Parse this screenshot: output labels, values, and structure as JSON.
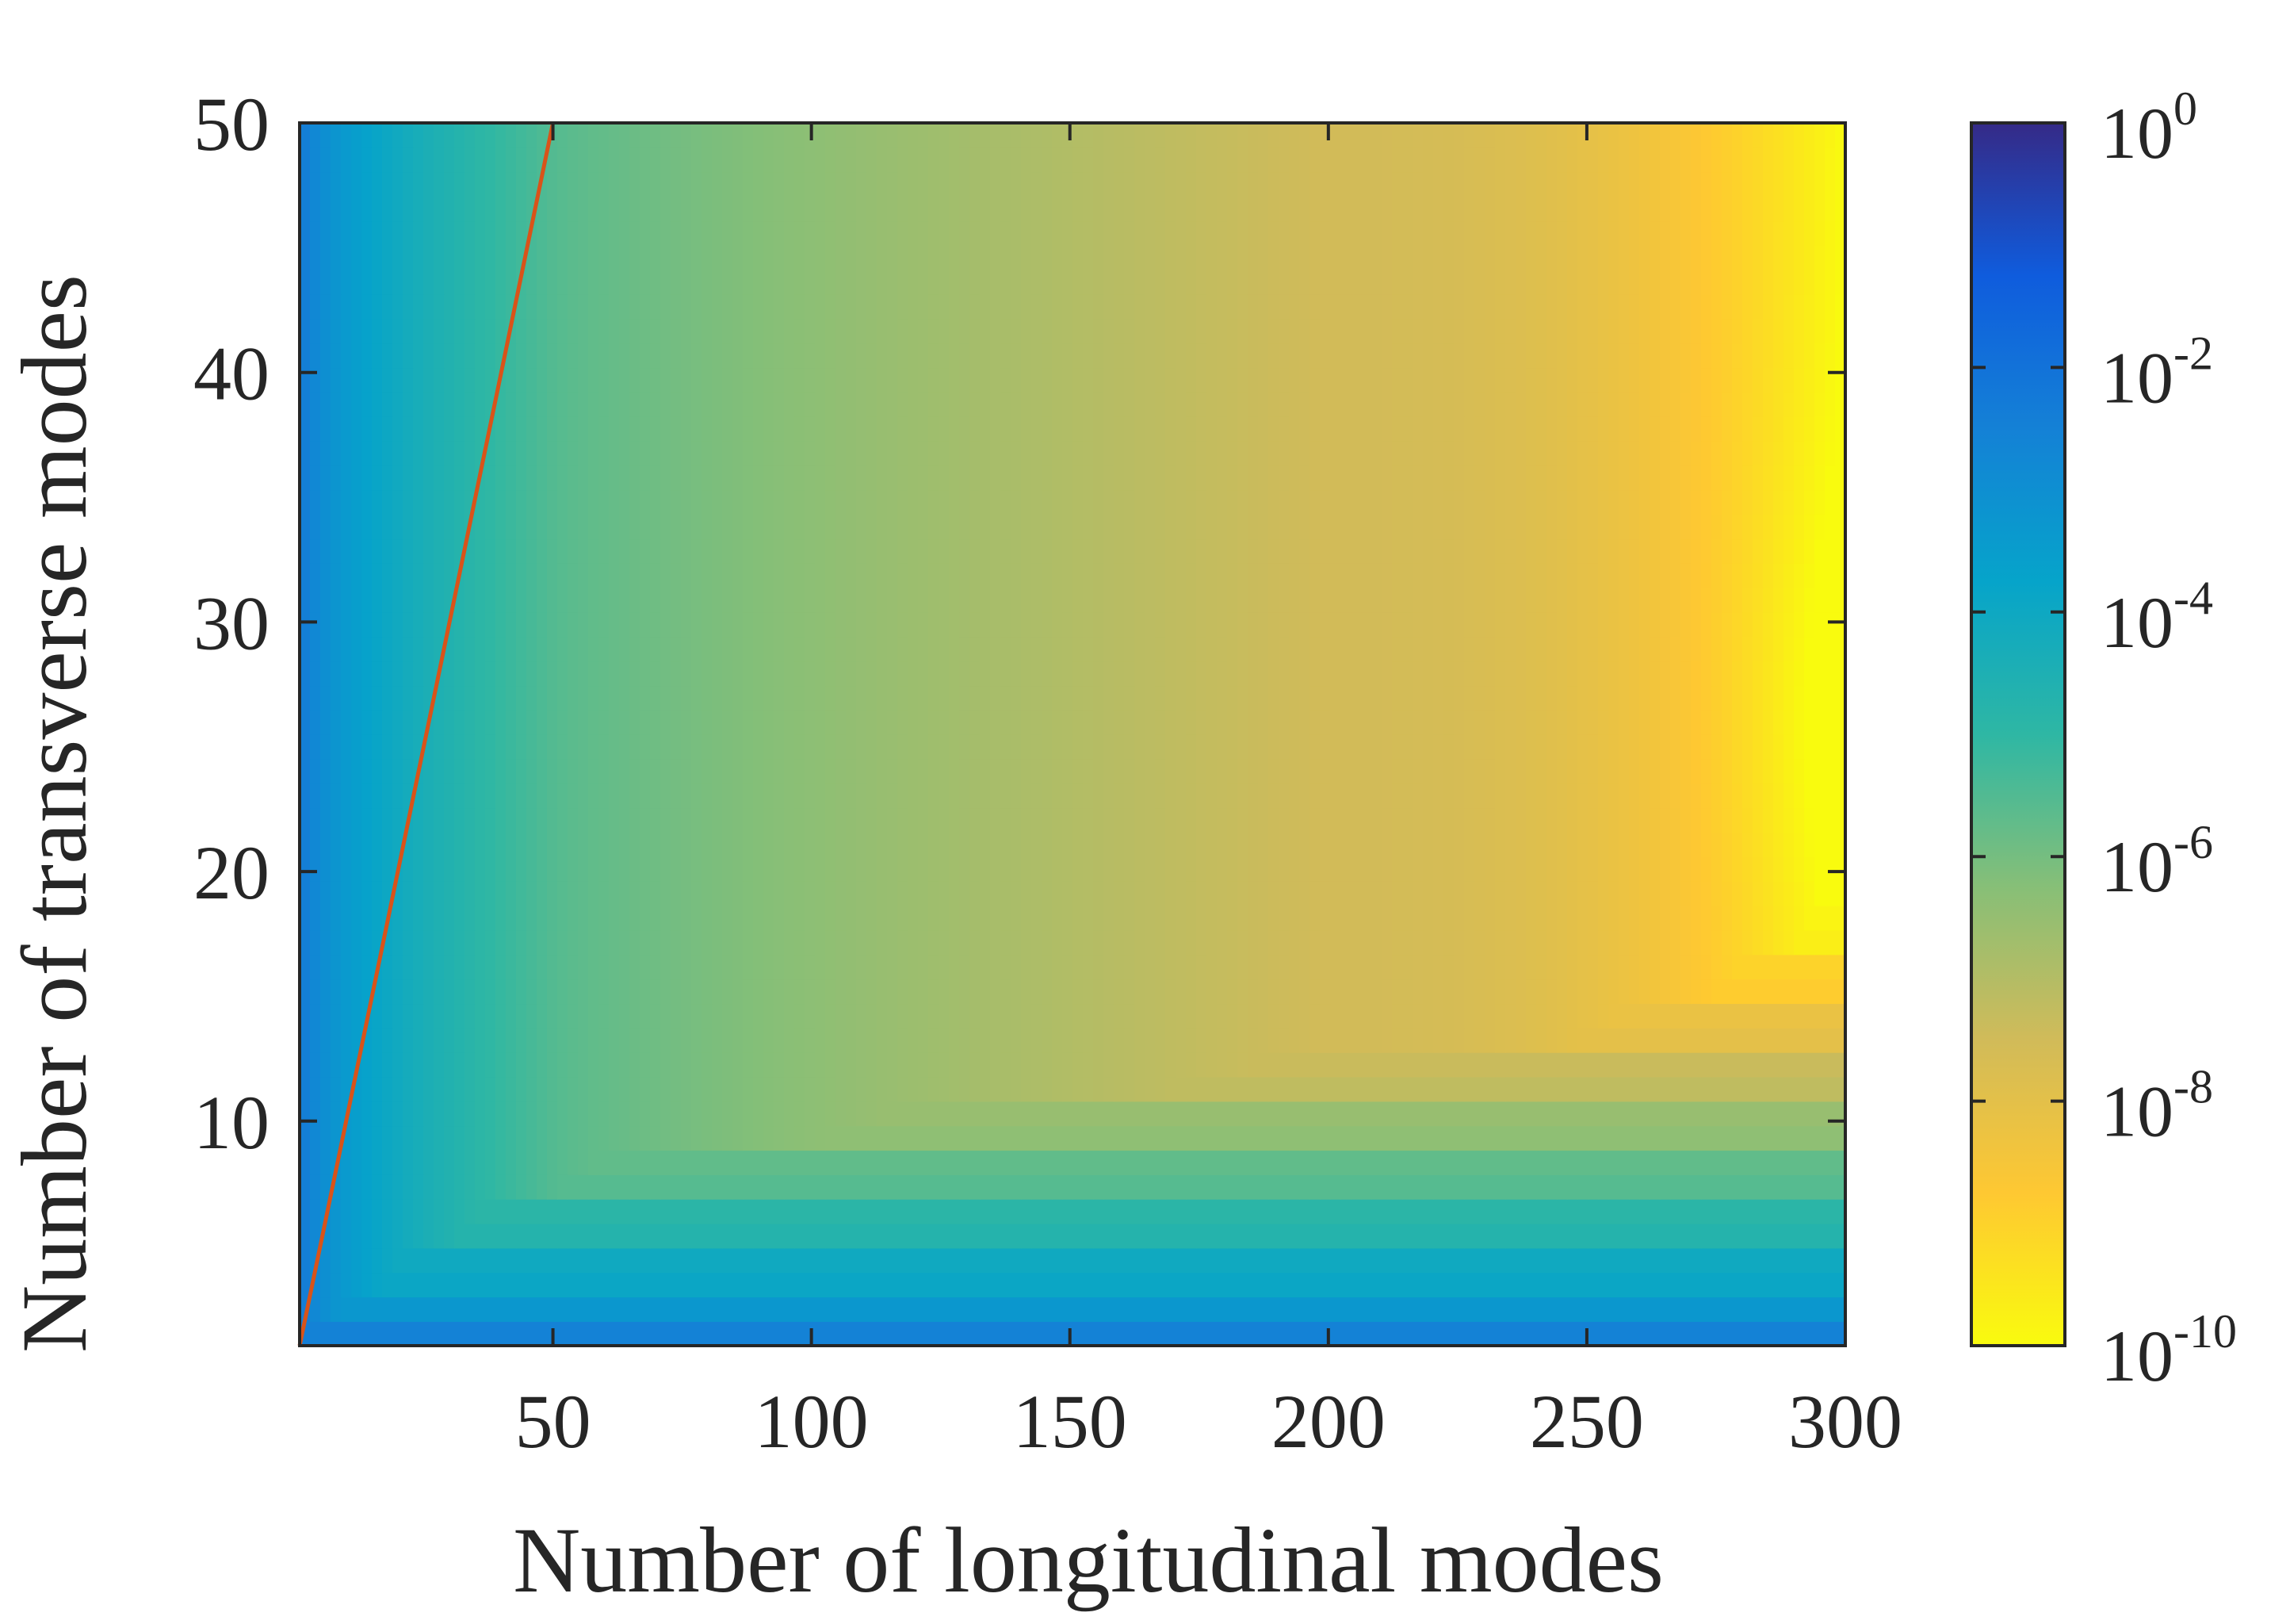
{
  "chart_data": {
    "type": "heatmap",
    "title": "",
    "xlabel": "Number of longitudinal modes",
    "ylabel": "Number of transverse modes",
    "xlim": [
      1,
      300
    ],
    "ylim": [
      1,
      50
    ],
    "x_ticks": [
      50,
      100,
      150,
      200,
      250,
      300
    ],
    "y_ticks": [
      10,
      20,
      30,
      40,
      50
    ],
    "colorbar": {
      "scale": "log",
      "range": [
        1e-10,
        1
      ],
      "reversed": true,
      "ticks": [
        {
          "base": "10",
          "exp": "0",
          "value": 1
        },
        {
          "base": "10",
          "exp": "-2",
          "value": 0.01
        },
        {
          "base": "10",
          "exp": "-4",
          "value": 0.0001
        },
        {
          "base": "10",
          "exp": "-6",
          "value": 1e-06
        },
        {
          "base": "10",
          "exp": "-8",
          "value": 1e-08
        },
        {
          "base": "10",
          "exp": "-10",
          "value": 1e-10
        }
      ],
      "colormap": "parula",
      "colormap_stops": [
        "#352a87",
        "#0f5cdd",
        "#1481d6",
        "#06a4ca",
        "#2eb7a4",
        "#87bf77",
        "#d1bb59",
        "#fec832",
        "#f9fb0e"
      ]
    },
    "description_values": {
      "error_at_x1_y1": 0.01,
      "error_at_x50_y50": 3e-06,
      "error_at_x300_y25": 1e-10,
      "error_at_x200_y30": 3e-08,
      "error_row_y1": 0.003,
      "error_row_y2": 0.0005
    },
    "overlay_line": {
      "color": "#d95319",
      "points": [
        [
          1,
          1
        ],
        [
          50,
          50
        ]
      ]
    }
  }
}
